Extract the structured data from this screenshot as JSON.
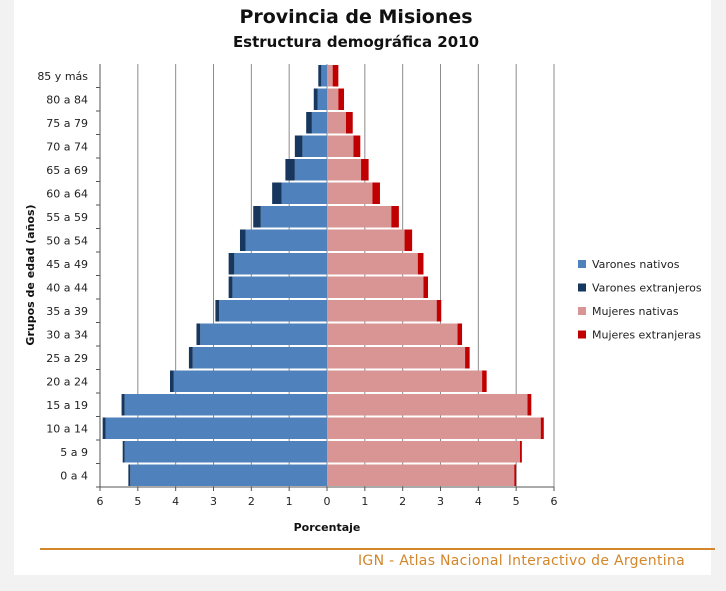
{
  "chart_data": {
    "type": "bar",
    "orientation": "horizontal",
    "layout": "population-pyramid",
    "title": "Provincia de Misiones",
    "subtitle": "Estructura demográfica 2010",
    "xlabel": "Porcentaje",
    "ylabel": "Grupos de edad (años)",
    "xlim": [
      -6,
      6
    ],
    "x_ticks": [
      "6",
      "5",
      "4",
      "3",
      "2",
      "1",
      "0",
      "1",
      "2",
      "3",
      "4",
      "5",
      "6"
    ],
    "grid": true,
    "legend_position": "right",
    "categories": [
      "0 a 4",
      "5 a 9",
      "10 a 14",
      "15 a 19",
      "20 a 24",
      "25 a 29",
      "30 a 34",
      "35 a 39",
      "40 a 44",
      "45 a 49",
      "50 a 54",
      "55 a 59",
      "60 a 64",
      "65 a 69",
      "70 a 74",
      "75 a 79",
      "80 a 84",
      "85 y más"
    ],
    "series": [
      {
        "name": "Varones nativos",
        "side": "left",
        "color": "#4f81bd",
        "values": [
          5.2,
          5.35,
          5.85,
          5.35,
          4.05,
          3.55,
          3.35,
          2.85,
          2.5,
          2.45,
          2.15,
          1.75,
          1.2,
          0.85,
          0.65,
          0.4,
          0.25,
          0.15
        ]
      },
      {
        "name": "Varones extranjeros",
        "side": "left",
        "color": "#17375e",
        "values": [
          0.05,
          0.05,
          0.08,
          0.08,
          0.1,
          0.1,
          0.1,
          0.1,
          0.1,
          0.15,
          0.15,
          0.2,
          0.25,
          0.25,
          0.2,
          0.15,
          0.1,
          0.08
        ]
      },
      {
        "name": "Mujeres nativas",
        "side": "right",
        "color": "#d99594",
        "values": [
          4.95,
          5.1,
          5.65,
          5.3,
          4.1,
          3.65,
          3.45,
          2.9,
          2.55,
          2.4,
          2.05,
          1.7,
          1.2,
          0.9,
          0.7,
          0.5,
          0.3,
          0.15
        ]
      },
      {
        "name": "Mujeres extranjeras",
        "side": "right",
        "color": "#c00000",
        "values": [
          0.05,
          0.05,
          0.08,
          0.1,
          0.12,
          0.12,
          0.12,
          0.12,
          0.12,
          0.15,
          0.2,
          0.2,
          0.2,
          0.2,
          0.18,
          0.18,
          0.15,
          0.15
        ]
      }
    ]
  },
  "footer": {
    "source": "IGN - Atlas Nacional Interactivo de Argentina"
  }
}
